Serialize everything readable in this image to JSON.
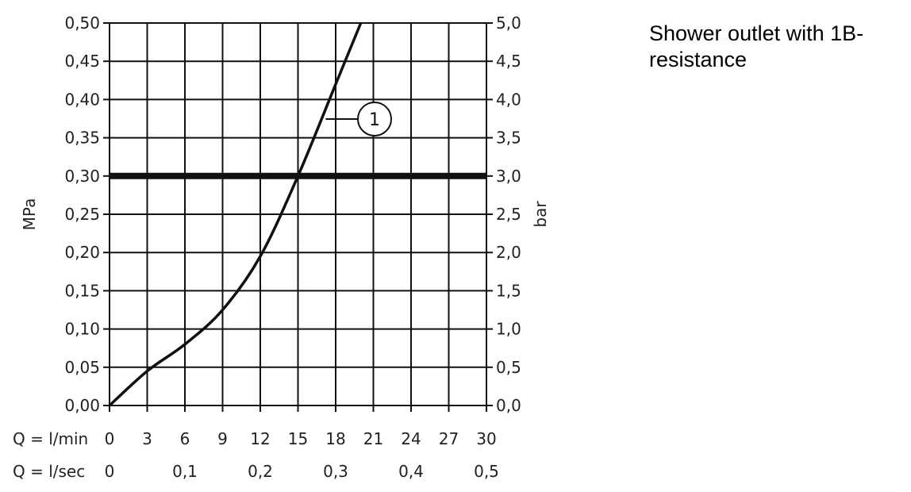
{
  "chart_data": {
    "type": "line",
    "title": "",
    "caption": "Shower outlet with 1B-resistance",
    "ylabel_left": "MPa",
    "ylabel_right": "bar",
    "xlim": [
      0,
      30
    ],
    "ylim": [
      0,
      0.5
    ],
    "grid": true,
    "x_ticks": [
      "0",
      "3",
      "6",
      "9",
      "12",
      "15",
      "18",
      "21",
      "24",
      "27",
      "30"
    ],
    "y_ticks_left": [
      "0,00",
      "0,05",
      "0,10",
      "0,15",
      "0,20",
      "0,25",
      "0,30",
      "0,35",
      "0,40",
      "0,45",
      "0,50"
    ],
    "y_ticks_right": [
      "0,0",
      "0,5",
      "1,0",
      "1,5",
      "2,0",
      "2,5",
      "3,0",
      "3,5",
      "4,0",
      "4,5",
      "5,0"
    ],
    "x_row_label_min": "Q = l/min",
    "x_row_label_sec": "Q = l/sec",
    "x_ticks_sec": [
      {
        "label": "0",
        "x": 0
      },
      {
        "label": "0,1",
        "x": 6
      },
      {
        "label": "0,2",
        "x": 12
      },
      {
        "label": "0,3",
        "x": 18
      },
      {
        "label": "0,4",
        "x": 24
      },
      {
        "label": "0,5",
        "x": 30
      }
    ],
    "reference_line": {
      "y": 0.3
    },
    "reference_drop": {
      "x": 15,
      "y": 0.3
    },
    "series": [
      {
        "marker_label": "1",
        "x": [
          0,
          3,
          6,
          9,
          12,
          15,
          18,
          20
        ],
        "y": [
          0.0,
          0.045,
          0.08,
          0.125,
          0.195,
          0.3,
          0.42,
          0.5
        ]
      }
    ]
  }
}
